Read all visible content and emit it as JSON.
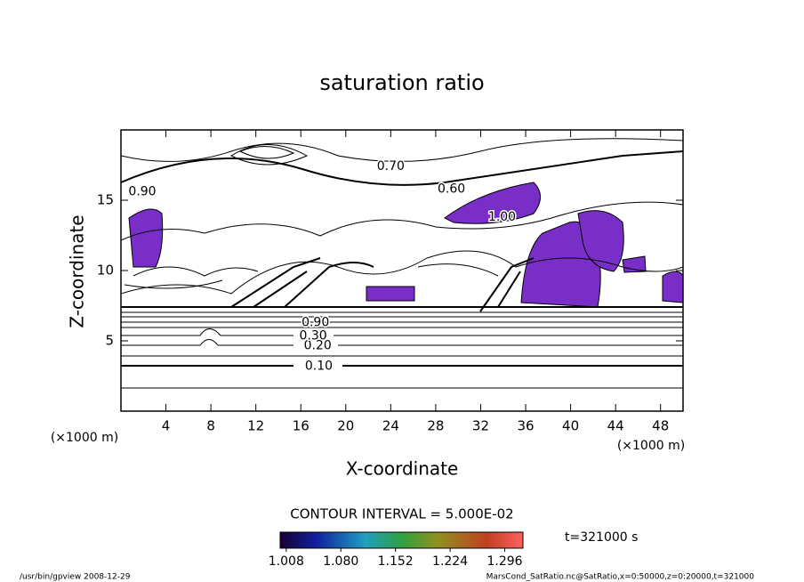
{
  "chart_data": {
    "type": "contour",
    "title": "saturation ratio",
    "xlabel": "X-coordinate",
    "ylabel": "Z-coordinate",
    "xunit": "(×1000 m)",
    "yunit": "(×1000 m)",
    "xlim": [
      0,
      50
    ],
    "xticks": [
      4,
      8,
      12,
      16,
      20,
      24,
      28,
      32,
      36,
      40,
      44,
      48
    ],
    "ylim": [
      0,
      20
    ],
    "yticks": [
      5,
      10,
      15
    ],
    "contour_labels": [
      {
        "text": "0.10",
        "x": 17.6,
        "y": 3.2
      },
      {
        "text": "0.20",
        "x": 17.5,
        "y": 4.65
      },
      {
        "text": "0.30",
        "x": 17.1,
        "y": 5.35
      },
      {
        "text": "0.90",
        "x": 17.3,
        "y": 6.3
      },
      {
        "text": "0.60",
        "x": 29.4,
        "y": 15.8
      },
      {
        "text": "0.70",
        "x": 24.0,
        "y": 17.4
      },
      {
        "text": "0.90",
        "x": 1.9,
        "y": 15.6
      },
      {
        "text": "1.00",
        "x": 33.9,
        "y": 13.8
      }
    ],
    "contour_interval": "CONTOUR INTERVAL = 5.000E-02",
    "colorbar_lim": [
      1.0,
      1.32
    ],
    "colorbar_ticks": [
      1.008,
      {
        "value": 1.08,
        "label": "1.080"
      },
      1.152,
      1.224,
      1.296
    ],
    "time_label": "t=321000 s",
    "footer_left": "/usr/bin/gpview  2008-12-29",
    "footer_right": "MarsCond_SatRatio.nc@SatRatio,x=0:50000,z=0:20000,t=321000"
  }
}
